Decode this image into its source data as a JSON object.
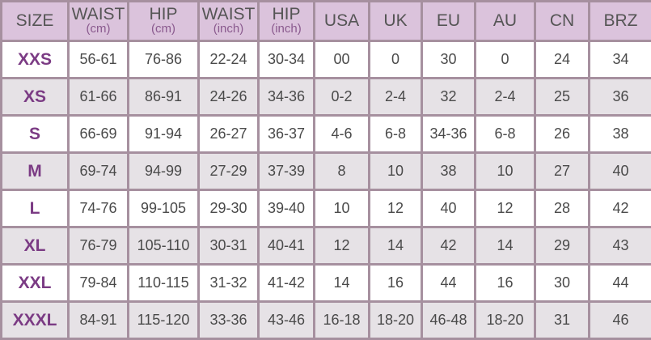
{
  "colors": {
    "header_bg": "#dbc3dc",
    "border": "#a6909f",
    "size_label": "#7b3b84",
    "row_alt": "#e6e2e6"
  },
  "headers": [
    {
      "label": "SIZE",
      "unit": ""
    },
    {
      "label": "WAIST",
      "unit": "(cm)"
    },
    {
      "label": "HIP",
      "unit": "(cm)"
    },
    {
      "label": "WAIST",
      "unit": "(inch)"
    },
    {
      "label": "HIP",
      "unit": "(inch)"
    },
    {
      "label": "USA",
      "unit": ""
    },
    {
      "label": "UK",
      "unit": ""
    },
    {
      "label": "EU",
      "unit": ""
    },
    {
      "label": "AU",
      "unit": ""
    },
    {
      "label": "CN",
      "unit": ""
    },
    {
      "label": "BRZ",
      "unit": ""
    }
  ],
  "rows": [
    [
      "XXS",
      "56-61",
      "76-86",
      "22-24",
      "30-34",
      "00",
      "0",
      "30",
      "0",
      "24",
      "34"
    ],
    [
      "XS",
      "61-66",
      "86-91",
      "24-26",
      "34-36",
      "0-2",
      "2-4",
      "32",
      "2-4",
      "25",
      "36"
    ],
    [
      "S",
      "66-69",
      "91-94",
      "26-27",
      "36-37",
      "4-6",
      "6-8",
      "34-36",
      "6-8",
      "26",
      "38"
    ],
    [
      "M",
      "69-74",
      "94-99",
      "27-29",
      "37-39",
      "8",
      "10",
      "38",
      "10",
      "27",
      "40"
    ],
    [
      "L",
      "74-76",
      "99-105",
      "29-30",
      "39-40",
      "10",
      "12",
      "40",
      "12",
      "28",
      "42"
    ],
    [
      "XL",
      "76-79",
      "105-110",
      "30-31",
      "40-41",
      "12",
      "14",
      "42",
      "14",
      "29",
      "43"
    ],
    [
      "XXL",
      "79-84",
      "110-115",
      "31-32",
      "41-42",
      "14",
      "16",
      "44",
      "16",
      "30",
      "44"
    ],
    [
      "XXXL",
      "84-91",
      "115-120",
      "33-36",
      "43-46",
      "16-18",
      "18-20",
      "46-48",
      "18-20",
      "31",
      "46"
    ]
  ]
}
